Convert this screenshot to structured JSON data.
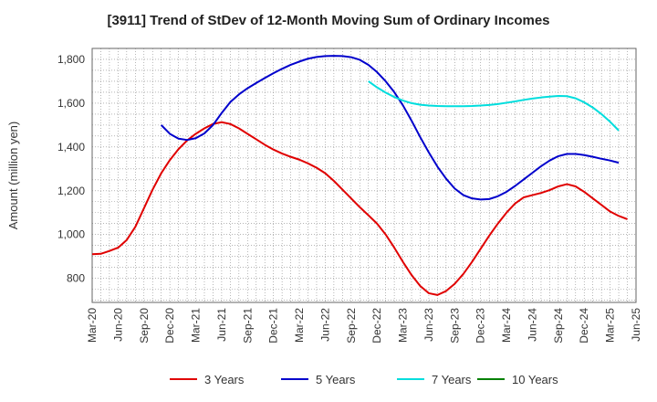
{
  "chart_data": {
    "type": "line",
    "title": "[3911]  Trend of StDev of 12-Month Moving Sum of Ordinary Incomes",
    "xlabel": "",
    "ylabel": "Amount (million yen)",
    "ylim": [
      690,
      1850
    ],
    "yticks": [
      800,
      1000,
      1200,
      1400,
      1600,
      1800
    ],
    "ytick_labels": [
      "800",
      "1,000",
      "1,200",
      "1,400",
      "1,600",
      "1,800"
    ],
    "x_start": "2020-03",
    "x_end": "2025-06",
    "xtick_labels": [
      "Mar-20",
      "Jun-20",
      "Sep-20",
      "Dec-20",
      "Mar-21",
      "Jun-21",
      "Sep-21",
      "Dec-21",
      "Mar-22",
      "Jun-22",
      "Sep-22",
      "Dec-22",
      "Mar-23",
      "Jun-23",
      "Sep-23",
      "Dec-23",
      "Mar-24",
      "Jun-24",
      "Sep-24",
      "Dec-24",
      "Mar-25",
      "Jun-25"
    ],
    "grid": true,
    "legend_position": "bottom",
    "series": [
      {
        "name": "3 Years",
        "color": "#e00000",
        "points": [
          [
            "2020-03",
            910
          ],
          [
            "2020-04",
            912
          ],
          [
            "2020-05",
            925
          ],
          [
            "2020-06",
            940
          ],
          [
            "2020-07",
            975
          ],
          [
            "2020-08",
            1035
          ],
          [
            "2020-09",
            1120
          ],
          [
            "2020-10",
            1205
          ],
          [
            "2020-11",
            1280
          ],
          [
            "2020-12",
            1340
          ],
          [
            "2021-01",
            1390
          ],
          [
            "2021-02",
            1430
          ],
          [
            "2021-03",
            1460
          ],
          [
            "2021-04",
            1485
          ],
          [
            "2021-05",
            1505
          ],
          [
            "2021-06",
            1513
          ],
          [
            "2021-07",
            1505
          ],
          [
            "2021-08",
            1485
          ],
          [
            "2021-09",
            1460
          ],
          [
            "2021-10",
            1435
          ],
          [
            "2021-11",
            1410
          ],
          [
            "2021-12",
            1388
          ],
          [
            "2022-01",
            1370
          ],
          [
            "2022-02",
            1355
          ],
          [
            "2022-03",
            1342
          ],
          [
            "2022-04",
            1325
          ],
          [
            "2022-05",
            1305
          ],
          [
            "2022-06",
            1280
          ],
          [
            "2022-07",
            1245
          ],
          [
            "2022-08",
            1205
          ],
          [
            "2022-09",
            1165
          ],
          [
            "2022-10",
            1125
          ],
          [
            "2022-11",
            1088
          ],
          [
            "2022-12",
            1050
          ],
          [
            "2023-01",
            1000
          ],
          [
            "2023-02",
            940
          ],
          [
            "2023-03",
            875
          ],
          [
            "2023-04",
            815
          ],
          [
            "2023-05",
            765
          ],
          [
            "2023-06",
            732
          ],
          [
            "2023-07",
            724
          ],
          [
            "2023-08",
            742
          ],
          [
            "2023-09",
            775
          ],
          [
            "2023-10",
            820
          ],
          [
            "2023-11",
            875
          ],
          [
            "2023-12",
            935
          ],
          [
            "2024-01",
            995
          ],
          [
            "2024-02",
            1050
          ],
          [
            "2024-03",
            1100
          ],
          [
            "2024-04",
            1142
          ],
          [
            "2024-05",
            1170
          ],
          [
            "2024-06",
            1180
          ],
          [
            "2024-07",
            1190
          ],
          [
            "2024-08",
            1203
          ],
          [
            "2024-09",
            1220
          ],
          [
            "2024-10",
            1230
          ],
          [
            "2024-11",
            1220
          ],
          [
            "2024-12",
            1195
          ],
          [
            "2025-01",
            1165
          ],
          [
            "2025-02",
            1135
          ],
          [
            "2025-03",
            1105
          ],
          [
            "2025-04",
            1085
          ],
          [
            "2025-05",
            1070
          ]
        ]
      },
      {
        "name": "5 Years",
        "color": "#0000cc",
        "points": [
          [
            "2020-11",
            1500
          ],
          [
            "2020-12",
            1460
          ],
          [
            "2021-01",
            1438
          ],
          [
            "2021-02",
            1432
          ],
          [
            "2021-03",
            1440
          ],
          [
            "2021-04",
            1462
          ],
          [
            "2021-05",
            1500
          ],
          [
            "2021-06",
            1555
          ],
          [
            "2021-07",
            1605
          ],
          [
            "2021-08",
            1640
          ],
          [
            "2021-09",
            1668
          ],
          [
            "2021-10",
            1692
          ],
          [
            "2021-11",
            1715
          ],
          [
            "2021-12",
            1737
          ],
          [
            "2022-01",
            1757
          ],
          [
            "2022-02",
            1775
          ],
          [
            "2022-03",
            1790
          ],
          [
            "2022-04",
            1803
          ],
          [
            "2022-05",
            1811
          ],
          [
            "2022-06",
            1815
          ],
          [
            "2022-07",
            1816
          ],
          [
            "2022-08",
            1815
          ],
          [
            "2022-09",
            1810
          ],
          [
            "2022-10",
            1798
          ],
          [
            "2022-11",
            1775
          ],
          [
            "2022-12",
            1742
          ],
          [
            "2023-01",
            1700
          ],
          [
            "2023-02",
            1650
          ],
          [
            "2023-03",
            1590
          ],
          [
            "2023-04",
            1520
          ],
          [
            "2023-05",
            1445
          ],
          [
            "2023-06",
            1375
          ],
          [
            "2023-07",
            1310
          ],
          [
            "2023-08",
            1255
          ],
          [
            "2023-09",
            1210
          ],
          [
            "2023-10",
            1180
          ],
          [
            "2023-11",
            1165
          ],
          [
            "2023-12",
            1160
          ],
          [
            "2024-01",
            1162
          ],
          [
            "2024-02",
            1175
          ],
          [
            "2024-03",
            1195
          ],
          [
            "2024-04",
            1222
          ],
          [
            "2024-05",
            1252
          ],
          [
            "2024-06",
            1282
          ],
          [
            "2024-07",
            1312
          ],
          [
            "2024-08",
            1338
          ],
          [
            "2024-09",
            1358
          ],
          [
            "2024-10",
            1368
          ],
          [
            "2024-11",
            1368
          ],
          [
            "2024-12",
            1363
          ],
          [
            "2025-01",
            1355
          ],
          [
            "2025-02",
            1346
          ],
          [
            "2025-03",
            1338
          ],
          [
            "2025-04",
            1328
          ]
        ]
      },
      {
        "name": "7 Years",
        "color": "#00dddd",
        "points": [
          [
            "2022-11",
            1700
          ],
          [
            "2022-12",
            1672
          ],
          [
            "2023-01",
            1648
          ],
          [
            "2023-02",
            1628
          ],
          [
            "2023-03",
            1612
          ],
          [
            "2023-04",
            1600
          ],
          [
            "2023-05",
            1593
          ],
          [
            "2023-06",
            1589
          ],
          [
            "2023-07",
            1587
          ],
          [
            "2023-08",
            1586
          ],
          [
            "2023-09",
            1586
          ],
          [
            "2023-10",
            1586
          ],
          [
            "2023-11",
            1587
          ],
          [
            "2023-12",
            1589
          ],
          [
            "2024-01",
            1592
          ],
          [
            "2024-02",
            1596
          ],
          [
            "2024-03",
            1602
          ],
          [
            "2024-04",
            1608
          ],
          [
            "2024-05",
            1615
          ],
          [
            "2024-06",
            1621
          ],
          [
            "2024-07",
            1626
          ],
          [
            "2024-08",
            1630
          ],
          [
            "2024-09",
            1633
          ],
          [
            "2024-10",
            1632
          ],
          [
            "2024-11",
            1622
          ],
          [
            "2024-12",
            1604
          ],
          [
            "2025-01",
            1580
          ],
          [
            "2025-02",
            1550
          ],
          [
            "2025-03",
            1515
          ],
          [
            "2025-04",
            1475
          ]
        ]
      },
      {
        "name": "10 Years",
        "color": "#008000",
        "points": []
      }
    ]
  }
}
